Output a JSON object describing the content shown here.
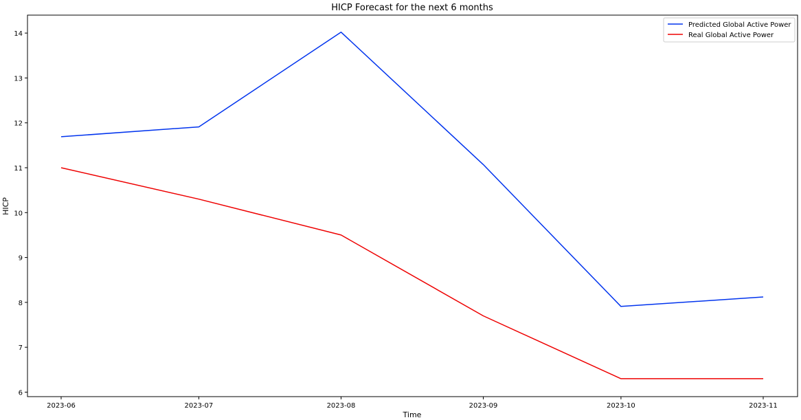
{
  "chart_data": {
    "type": "line",
    "title": "HICP Forecast for the next 6 months",
    "xlabel": "Time",
    "ylabel": "HICP",
    "x": [
      "2023-06",
      "2023-07",
      "2023-08",
      "2023-09",
      "2023-10",
      "2023-11"
    ],
    "x_tick_labels": [
      "2023-06",
      "2023-07",
      "2023-08",
      "2023-09",
      "2023-10",
      "2023-11"
    ],
    "y_ticks": [
      6,
      7,
      8,
      9,
      10,
      11,
      12,
      13,
      14
    ],
    "ylim": [
      5.9,
      14.4
    ],
    "grid": false,
    "legend_position": "top-right",
    "series": [
      {
        "name": "Predicted Global Active Power",
        "color": "#0033ee",
        "values": [
          11.69,
          11.91,
          14.02,
          11.07,
          7.91,
          8.12
        ]
      },
      {
        "name": "Real Global Active Power",
        "color": "#ee0000",
        "values": [
          11.0,
          10.3,
          9.5,
          7.7,
          6.3,
          6.3
        ]
      }
    ]
  }
}
